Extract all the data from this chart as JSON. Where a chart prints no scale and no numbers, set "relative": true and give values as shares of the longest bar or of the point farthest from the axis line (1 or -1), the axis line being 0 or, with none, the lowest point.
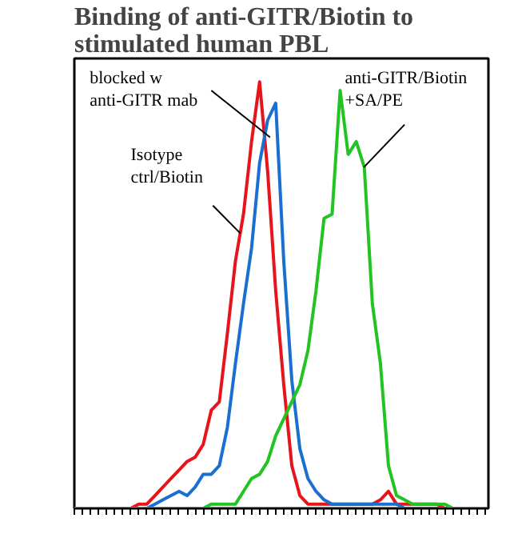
{
  "chart_data": {
    "type": "line",
    "title": "Binding of anti-GITR/Biotin to\nstimulated human PBL",
    "relative": true,
    "grid": false,
    "legend": false,
    "marker": "none",
    "line_style": "solid",
    "categories": [
      null,
      null,
      null,
      null,
      null,
      null,
      null,
      null,
      null,
      null,
      null,
      null,
      null,
      null,
      null,
      null,
      null,
      null,
      null,
      null,
      null,
      null,
      null,
      null,
      null,
      null,
      null,
      null,
      null,
      null,
      null,
      null,
      null,
      null,
      null,
      null,
      null,
      null,
      null,
      null,
      null,
      null,
      null,
      null,
      null,
      null,
      null,
      null,
      null,
      null,
      null,
      null
    ],
    "series": [
      {
        "name": "Isotype\nctrl/Biotin",
        "color": "#e8141c",
        "values": [
          null,
          null,
          null,
          null,
          null,
          0,
          0,
          0,
          0.01,
          0.01,
          0.03,
          0.05,
          0.07,
          0.09,
          0.11,
          0.12,
          0.15,
          0.23,
          0.25,
          0.41,
          0.58,
          0.69,
          0.86,
          1.0,
          0.79,
          0.51,
          0.29,
          0.1,
          0.03,
          0.01,
          0.01,
          0.01,
          0.01,
          0.01,
          0.01,
          0.01,
          0.01,
          0.01,
          0.02,
          0.04,
          0.01,
          0.01,
          0.01,
          0.01,
          0.01,
          0.01,
          0,
          0,
          0,
          null,
          null,
          null
        ]
      },
      {
        "name": "blocked w\nanti-GITR mab",
        "color": "#1a6fd0",
        "values": [
          null,
          null,
          null,
          null,
          null,
          null,
          null,
          0,
          0,
          0,
          0.01,
          0.02,
          0.03,
          0.04,
          0.03,
          0.05,
          0.08,
          0.08,
          0.1,
          0.19,
          0.34,
          0.48,
          0.61,
          0.81,
          0.91,
          0.95,
          0.58,
          0.3,
          0.14,
          0.07,
          0.04,
          0.02,
          0.01,
          0.01,
          0.01,
          0.01,
          0.01,
          0.01,
          0.01,
          0.01,
          0.01,
          0,
          0,
          0,
          0,
          0,
          0,
          0,
          0,
          null,
          null,
          null
        ]
      },
      {
        "name": "anti-GITR/Biotin\n+SA/PE",
        "color": "#22c422",
        "values": [
          0,
          0,
          0,
          0,
          0,
          0,
          0,
          0,
          0,
          0,
          0,
          0,
          0,
          0,
          0,
          0,
          0,
          0.01,
          0.01,
          0.01,
          0.01,
          0.04,
          0.07,
          0.08,
          0.11,
          0.17,
          0.21,
          0.25,
          0.29,
          0.37,
          0.51,
          0.68,
          0.69,
          0.98,
          0.83,
          0.86,
          0.8,
          0.48,
          0.34,
          0.1,
          0.03,
          0.02,
          0.01,
          0.01,
          0.01,
          0.01,
          0.01,
          0,
          0,
          0,
          0,
          0
        ]
      }
    ]
  }
}
